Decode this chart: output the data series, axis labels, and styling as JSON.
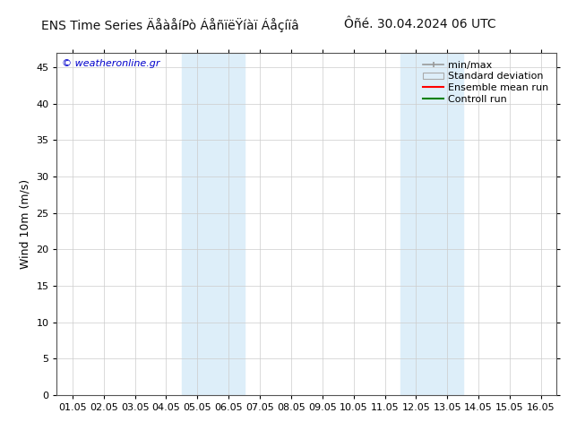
{
  "title_left": "ENS Time Series ÄåàåíPò ÁåñïëŸíàï Áåçíïâ",
  "title_right": "Ôñé. 30.04.2024 06 UTC",
  "ylabel": "Wind 10m (m/s)",
  "xticklabels": [
    "01.05",
    "02.05",
    "03.05",
    "04.05",
    "05.05",
    "06.05",
    "07.05",
    "08.05",
    "09.05",
    "10.05",
    "11.05",
    "12.05",
    "13.05",
    "14.05",
    "15.05",
    "16.05"
  ],
  "yticks": [
    0,
    5,
    10,
    15,
    20,
    25,
    30,
    35,
    40,
    45
  ],
  "ymax": 47,
  "ymin": 0,
  "shade_regions": [
    {
      "xstart": 3.5,
      "xend": 5.5,
      "color": "#ddeef9"
    },
    {
      "xstart": 10.5,
      "xend": 12.5,
      "color": "#ddeef9"
    }
  ],
  "watermark": "© weatheronline.gr",
  "watermark_color": "#0000cc",
  "background_color": "#ffffff",
  "plot_bg_color": "#ffffff",
  "grid_color": "#cccccc",
  "border_color": "#555555",
  "title_fontsize": 10,
  "ylabel_fontsize": 9,
  "tick_fontsize": 8,
  "legend_fontsize": 8,
  "watermark_fontsize": 8
}
